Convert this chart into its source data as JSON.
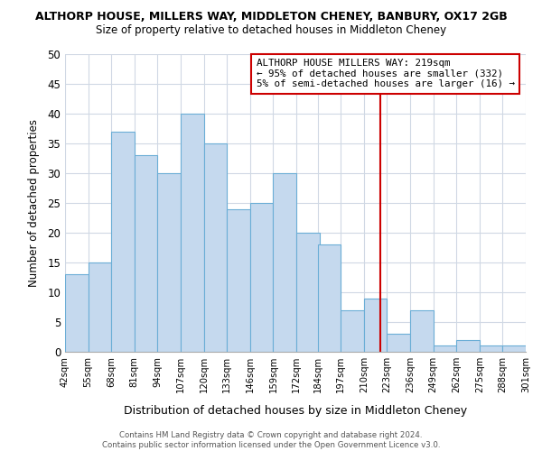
{
  "title": "ALTHORP HOUSE, MILLERS WAY, MIDDLETON CHENEY, BANBURY, OX17 2GB",
  "subtitle": "Size of property relative to detached houses in Middleton Cheney",
  "xlabel": "Distribution of detached houses by size in Middleton Cheney",
  "ylabel": "Number of detached properties",
  "bin_edges": [
    42,
    55,
    68,
    81,
    94,
    107,
    120,
    133,
    146,
    159,
    172,
    184,
    197,
    210,
    223,
    236,
    249,
    262,
    275,
    288,
    301
  ],
  "bin_labels": [
    "42sqm",
    "55sqm",
    "68sqm",
    "81sqm",
    "94sqm",
    "107sqm",
    "120sqm",
    "133sqm",
    "146sqm",
    "159sqm",
    "172sqm",
    "184sqm",
    "197sqm",
    "210sqm",
    "223sqm",
    "236sqm",
    "249sqm",
    "262sqm",
    "275sqm",
    "288sqm",
    "301sqm"
  ],
  "counts": [
    13,
    15,
    37,
    33,
    30,
    40,
    35,
    24,
    25,
    30,
    20,
    18,
    7,
    9,
    3,
    7,
    1,
    2,
    1,
    1
  ],
  "bar_color": "#c5d9ee",
  "bar_edge_color": "#6baed6",
  "vline_x": 219,
  "vline_color": "#cc0000",
  "annotation_box_text": "ALTHORP HOUSE MILLERS WAY: 219sqm\n← 95% of detached houses are smaller (332)\n5% of semi-detached houses are larger (16) →",
  "annotation_box_color": "#cc0000",
  "annotation_text_color": "#000000",
  "ylim": [
    0,
    50
  ],
  "yticks": [
    0,
    5,
    10,
    15,
    20,
    25,
    30,
    35,
    40,
    45,
    50
  ],
  "footer_line1": "Contains HM Land Registry data © Crown copyright and database right 2024.",
  "footer_line2": "Contains public sector information licensed under the Open Government Licence v3.0.",
  "bg_color": "#ffffff",
  "grid_color": "#d0d8e4"
}
